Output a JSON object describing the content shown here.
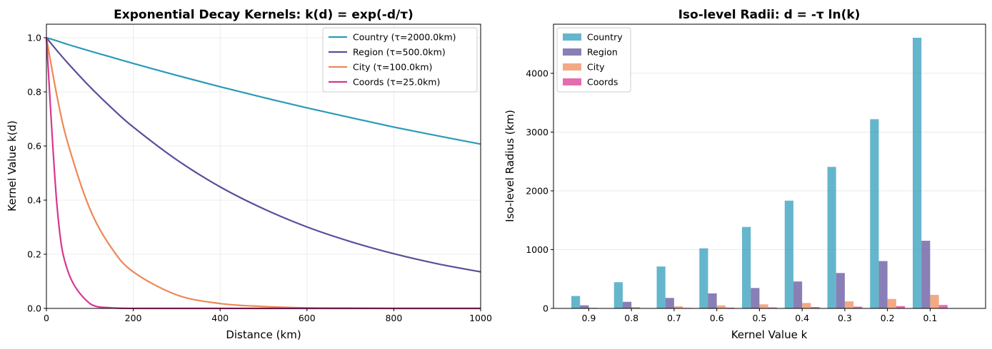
{
  "colors": {
    "country": "#2a9ab8",
    "region": "#5b4e9a",
    "city": "#ee8855",
    "coords": "#d93590"
  },
  "chart_data": [
    {
      "type": "line",
      "title": "Exponential Decay Kernels: k(d) = exp(-d/τ)",
      "xlabel": "Distance (km)",
      "ylabel": "Kernel Value k(d)",
      "xlim": [
        0,
        1000
      ],
      "ylim": [
        0,
        1.05
      ],
      "xticks": [
        0,
        200,
        400,
        600,
        800,
        1000
      ],
      "yticks": [
        0.0,
        0.2,
        0.4,
        0.6,
        0.8,
        1.0
      ],
      "xtick_labels": [
        "0",
        "200",
        "400",
        "600",
        "800",
        "1000"
      ],
      "ytick_labels": [
        "0.0",
        "0.2",
        "0.4",
        "0.6",
        "0.8",
        "1.0"
      ],
      "grid": true,
      "legend_position": "top-right",
      "x": [
        0,
        25,
        50,
        100,
        150,
        200,
        300,
        400,
        500,
        600,
        700,
        800,
        900,
        1000
      ],
      "series": [
        {
          "name": "Country (τ=2000.0km)",
          "color_key": "country",
          "values": [
            1.0,
            0.988,
            0.975,
            0.951,
            0.928,
            0.905,
            0.861,
            0.819,
            0.779,
            0.741,
            0.705,
            0.67,
            0.638,
            0.607
          ]
        },
        {
          "name": "Region (τ=500.0km)",
          "color_key": "region",
          "values": [
            1.0,
            0.951,
            0.905,
            0.819,
            0.741,
            0.67,
            0.549,
            0.449,
            0.368,
            0.301,
            0.247,
            0.202,
            0.165,
            0.135
          ]
        },
        {
          "name": "City (τ=100.0km)",
          "color_key": "city",
          "values": [
            1.0,
            0.779,
            0.607,
            0.368,
            0.223,
            0.135,
            0.05,
            0.018,
            0.007,
            0.002,
            0.001,
            0.0,
            0.0,
            0.0
          ]
        },
        {
          "name": "Coords (τ=25.0km)",
          "color_key": "coords",
          "values": [
            1.0,
            0.368,
            0.135,
            0.018,
            0.002,
            0.0,
            0.0,
            0.0,
            0.0,
            0.0,
            0.0,
            0.0,
            0.0,
            0.0
          ]
        }
      ]
    },
    {
      "type": "bar",
      "title": "Iso-level Radii: d = -τ ln(k)",
      "xlabel": "Kernel Value k",
      "ylabel": "Iso-level Radius (km)",
      "categories": [
        "0.9",
        "0.8",
        "0.7",
        "0.6",
        "0.5",
        "0.4",
        "0.3",
        "0.2",
        "0.1"
      ],
      "ylim": [
        0,
        4835
      ],
      "yticks": [
        0,
        1000,
        2000,
        3000,
        4000
      ],
      "ytick_labels": [
        "0",
        "1000",
        "2000",
        "3000",
        "4000"
      ],
      "grid": true,
      "legend_position": "top-left",
      "series": [
        {
          "name": "Country",
          "color_key": "country",
          "values": [
            211,
            446,
            713,
            1022,
            1386,
            1833,
            2408,
            3219,
            4605
          ]
        },
        {
          "name": "Region",
          "color_key": "region",
          "values": [
            53,
            112,
            178,
            255,
            347,
            458,
            602,
            805,
            1151
          ]
        },
        {
          "name": "City",
          "color_key": "city",
          "values": [
            11,
            22,
            36,
            51,
            69,
            92,
            120,
            161,
            230
          ]
        },
        {
          "name": "Coords",
          "color_key": "coords",
          "values": [
            3,
            6,
            9,
            13,
            17,
            23,
            30,
            40,
            58
          ]
        }
      ]
    }
  ]
}
